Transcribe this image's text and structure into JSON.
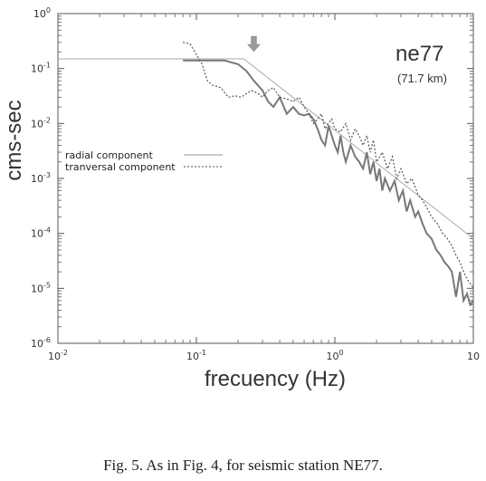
{
  "chart_data": {
    "type": "line",
    "station": "ne77",
    "distance": "(71.7 km)",
    "xlabel": "frecuency (Hz)",
    "ylabel": "cms-sec",
    "xscale": "log",
    "yscale": "log",
    "xlim": [
      0.01,
      10
    ],
    "ylim": [
      1e-06,
      1
    ],
    "x_ticks": [
      {
        "value": 0.01,
        "base": "10",
        "exp": "-2"
      },
      {
        "value": 0.1,
        "base": "10",
        "exp": "-1"
      },
      {
        "value": 1,
        "base": "10",
        "exp": "0"
      },
      {
        "value": 10,
        "base": "10",
        "exp": ""
      }
    ],
    "y_ticks": [
      {
        "value": 1,
        "base": "10",
        "exp": "0"
      },
      {
        "value": 0.1,
        "base": "10",
        "exp": "-1"
      },
      {
        "value": 0.01,
        "base": "10",
        "exp": "-2"
      },
      {
        "value": 0.001,
        "base": "10",
        "exp": "-3"
      },
      {
        "value": 0.0001,
        "base": "10",
        "exp": "-4"
      },
      {
        "value": 1e-05,
        "base": "10",
        "exp": "-5"
      },
      {
        "value": 1e-06,
        "base": "10",
        "exp": "-6"
      }
    ],
    "legend_position": "middle-left",
    "arrow_at_frequency": 0.26,
    "model_fit": {
      "x": [
        0.01,
        0.22,
        10
      ],
      "y": [
        0.15,
        0.15,
        8e-05
      ],
      "color": "#aaaaaa"
    },
    "series": [
      {
        "name": "radial component",
        "style": "solid",
        "color": "#777777",
        "x": [
          0.08,
          0.1,
          0.13,
          0.16,
          0.2,
          0.23,
          0.26,
          0.3,
          0.33,
          0.36,
          0.4,
          0.45,
          0.5,
          0.55,
          0.6,
          0.65,
          0.7,
          0.75,
          0.8,
          0.85,
          0.9,
          0.95,
          1.0,
          1.05,
          1.1,
          1.15,
          1.2,
          1.3,
          1.4,
          1.5,
          1.6,
          1.7,
          1.8,
          1.9,
          2.0,
          2.1,
          2.2,
          2.3,
          2.5,
          2.7,
          2.9,
          3.1,
          3.3,
          3.5,
          3.8,
          4.0,
          4.3,
          4.6,
          5.0,
          5.4,
          5.8,
          6.2,
          6.6,
          7.0,
          7.5,
          8.0,
          8.5,
          9.0,
          9.5,
          10
        ],
        "y": [
          0.14,
          0.14,
          0.14,
          0.14,
          0.12,
          0.09,
          0.06,
          0.04,
          0.025,
          0.02,
          0.03,
          0.015,
          0.02,
          0.015,
          0.014,
          0.015,
          0.012,
          0.008,
          0.005,
          0.004,
          0.009,
          0.006,
          0.004,
          0.003,
          0.006,
          0.003,
          0.002,
          0.004,
          0.0025,
          0.002,
          0.0015,
          0.003,
          0.0012,
          0.002,
          0.0009,
          0.0015,
          0.0006,
          0.001,
          0.0006,
          0.0009,
          0.0004,
          0.0006,
          0.00025,
          0.0004,
          0.0002,
          0.00025,
          0.00015,
          0.0001,
          8e-05,
          5e-05,
          4e-05,
          3e-05,
          2.5e-05,
          2e-05,
          7e-06,
          2e-05,
          6e-06,
          8e-06,
          5e-06,
          6e-06
        ]
      },
      {
        "name": "tranversal component",
        "style": "dotted",
        "color": "#555555",
        "x": [
          0.08,
          0.09,
          0.1,
          0.11,
          0.12,
          0.13,
          0.15,
          0.17,
          0.19,
          0.21,
          0.23,
          0.25,
          0.28,
          0.3,
          0.33,
          0.36,
          0.4,
          0.45,
          0.5,
          0.55,
          0.6,
          0.65,
          0.7,
          0.75,
          0.8,
          0.85,
          0.9,
          0.95,
          1.0,
          1.1,
          1.2,
          1.3,
          1.4,
          1.5,
          1.6,
          1.7,
          1.8,
          1.9,
          2.0,
          2.2,
          2.4,
          2.6,
          2.8,
          3.0,
          3.3,
          3.6,
          4.0,
          4.3,
          4.6,
          5.0,
          5.5,
          6.0,
          6.5,
          7.0,
          7.5,
          8.0,
          8.5,
          9.0,
          10
        ],
        "y": [
          0.3,
          0.28,
          0.18,
          0.12,
          0.06,
          0.05,
          0.045,
          0.03,
          0.032,
          0.03,
          0.035,
          0.04,
          0.035,
          0.03,
          0.04,
          0.045,
          0.03,
          0.028,
          0.025,
          0.03,
          0.02,
          0.015,
          0.01,
          0.012,
          0.015,
          0.008,
          0.01,
          0.012,
          0.008,
          0.007,
          0.01,
          0.005,
          0.008,
          0.006,
          0.004,
          0.006,
          0.003,
          0.005,
          0.002,
          0.003,
          0.0015,
          0.0025,
          0.001,
          0.0015,
          0.0008,
          0.001,
          0.0005,
          0.0004,
          0.0003,
          0.0002,
          0.00015,
          0.0001,
          8e-05,
          6e-05,
          4e-05,
          3e-05,
          2e-05,
          1.5e-05,
          1e-05
        ]
      }
    ]
  },
  "caption": "Fig. 5. As in Fig. 4, for seismic station NE77."
}
